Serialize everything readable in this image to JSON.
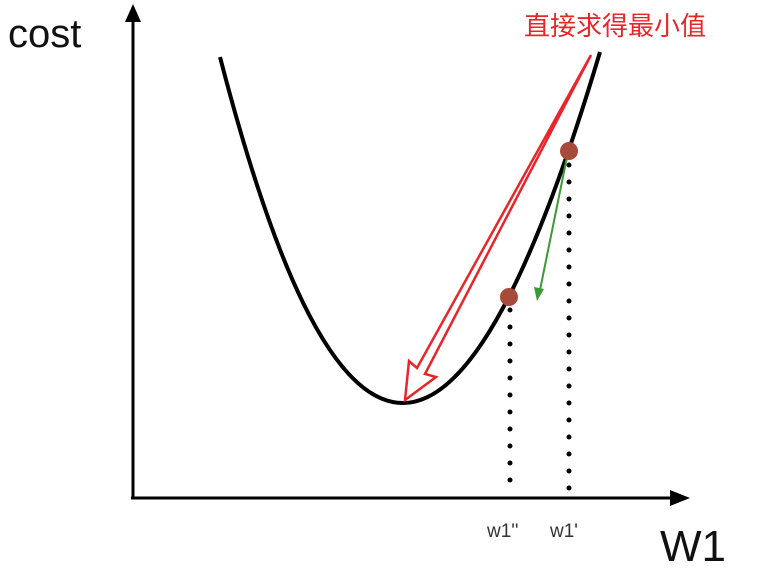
{
  "axes": {
    "y_label": "cost",
    "x_label": "W1"
  },
  "ticks": {
    "w1_second": "w1''",
    "w1_first": "w1'"
  },
  "annotation": "直接求得最小值",
  "colors": {
    "curve": "#000000",
    "direct_arrow": "#e8262a",
    "gradient_step_arrow": "#3a9a35",
    "points": "#a84a3a"
  }
}
